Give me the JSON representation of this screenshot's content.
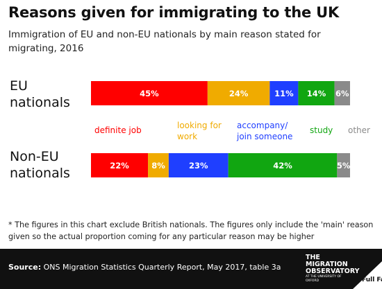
{
  "title": "Reasons given for immigrating to the UK",
  "subtitle": "Immigration of EU and non-EU nationals by main reason stated for migrating, 2016",
  "chart_data": {
    "type": "bar",
    "stacked": true,
    "orientation": "horizontal",
    "categories": [
      "EU nationals",
      "Non-EU nationals"
    ],
    "series": [
      {
        "name": "definite job",
        "color": "#ff0000",
        "values": [
          45,
          22
        ]
      },
      {
        "name": "looking for work",
        "color": "#f0ab00",
        "values": [
          24,
          8
        ]
      },
      {
        "name": "accompany/ join someone",
        "color": "#1f3fff",
        "values": [
          11,
          23
        ]
      },
      {
        "name": "study",
        "color": "#11a611",
        "values": [
          14,
          42
        ]
      },
      {
        "name": "other",
        "color": "#8a8a8a",
        "values": [
          6,
          5
        ]
      }
    ],
    "value_labels": [
      [
        "45%",
        "24%",
        "11%",
        "14%",
        "6%"
      ],
      [
        "22%",
        "8%",
        "23%",
        "42%",
        "5%"
      ]
    ],
    "legend_position": "between bars",
    "xlim": [
      0,
      100
    ]
  },
  "row_labels": [
    "EU nationals",
    "Non-EU nationals"
  ],
  "legend": [
    "definite job",
    "looking for work",
    "accompany/ join someone",
    "study",
    "other"
  ],
  "footnote": "* The figures in this chart exclude British nationals. The figures only include the 'main' reason given so the actual proportion coming for any particular reason may be higher",
  "source_label": "Source:",
  "source_text": "ONS Migration Statistics Quarterly Report, May 2017, table 3a",
  "logo": {
    "lines": [
      "THE",
      "MIGRATION",
      "OBSERVATORY"
    ],
    "small": "AT THE UNIVERSITY OF OXFORD"
  },
  "brand": "Full Fact"
}
